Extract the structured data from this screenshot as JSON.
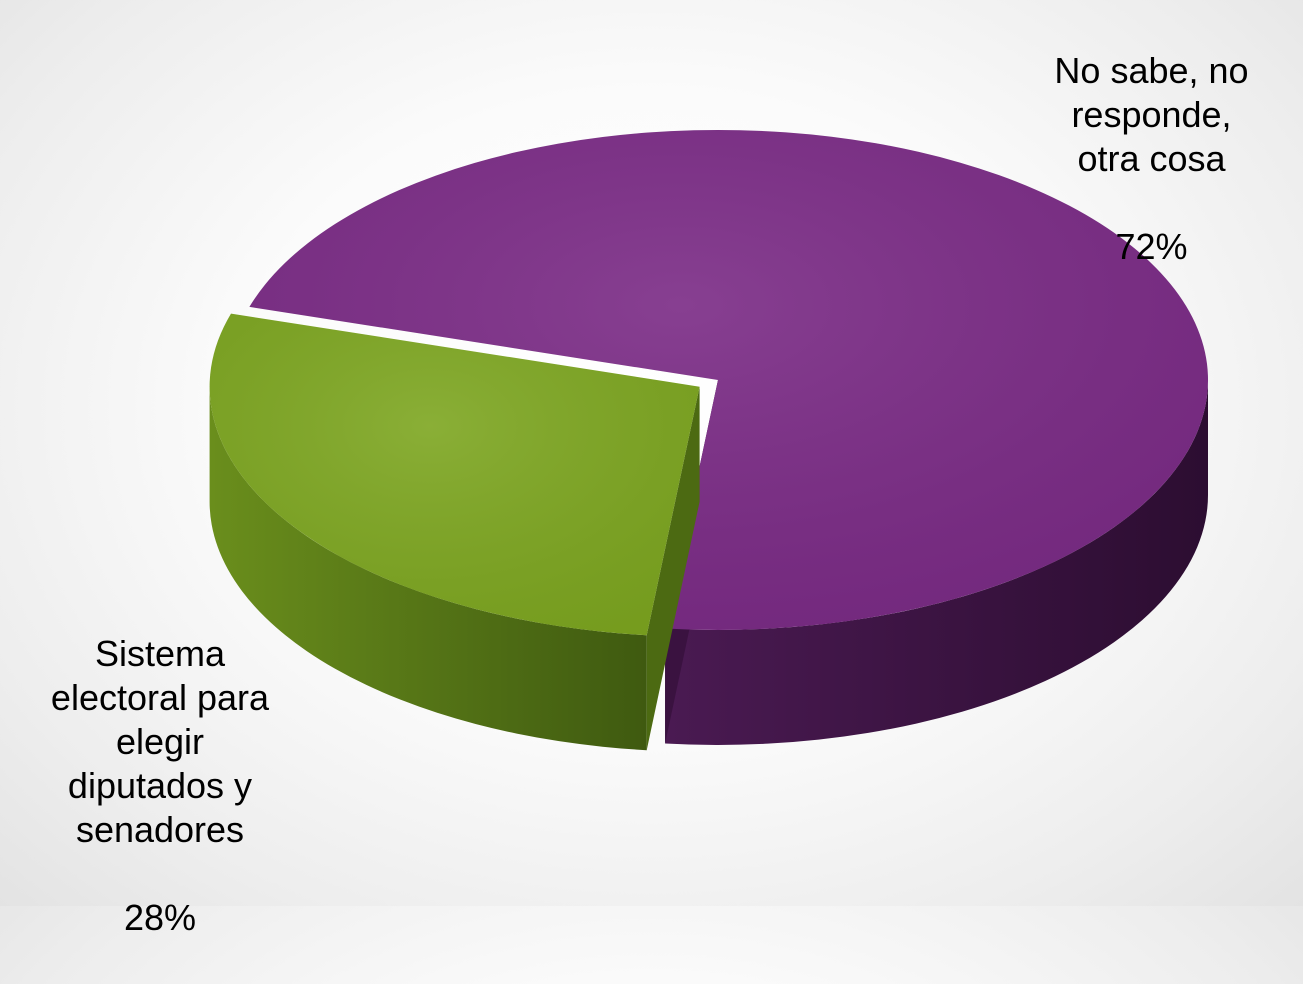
{
  "chart_data": {
    "type": "pie",
    "style": "3d",
    "slices": [
      {
        "label": "No sabe, no\nresponde,\notra cosa",
        "value": 72,
        "value_label": "72%",
        "color": "#7a2a85",
        "side_color": "#3a1240"
      },
      {
        "label": "Sistema\nelectoral para\nelegir\ndiputados y\nsenadores",
        "value": 28,
        "value_label": "28%",
        "color": "#7da620",
        "side_color": "#4c6a12",
        "exploded": true
      }
    ],
    "legend": "none"
  }
}
